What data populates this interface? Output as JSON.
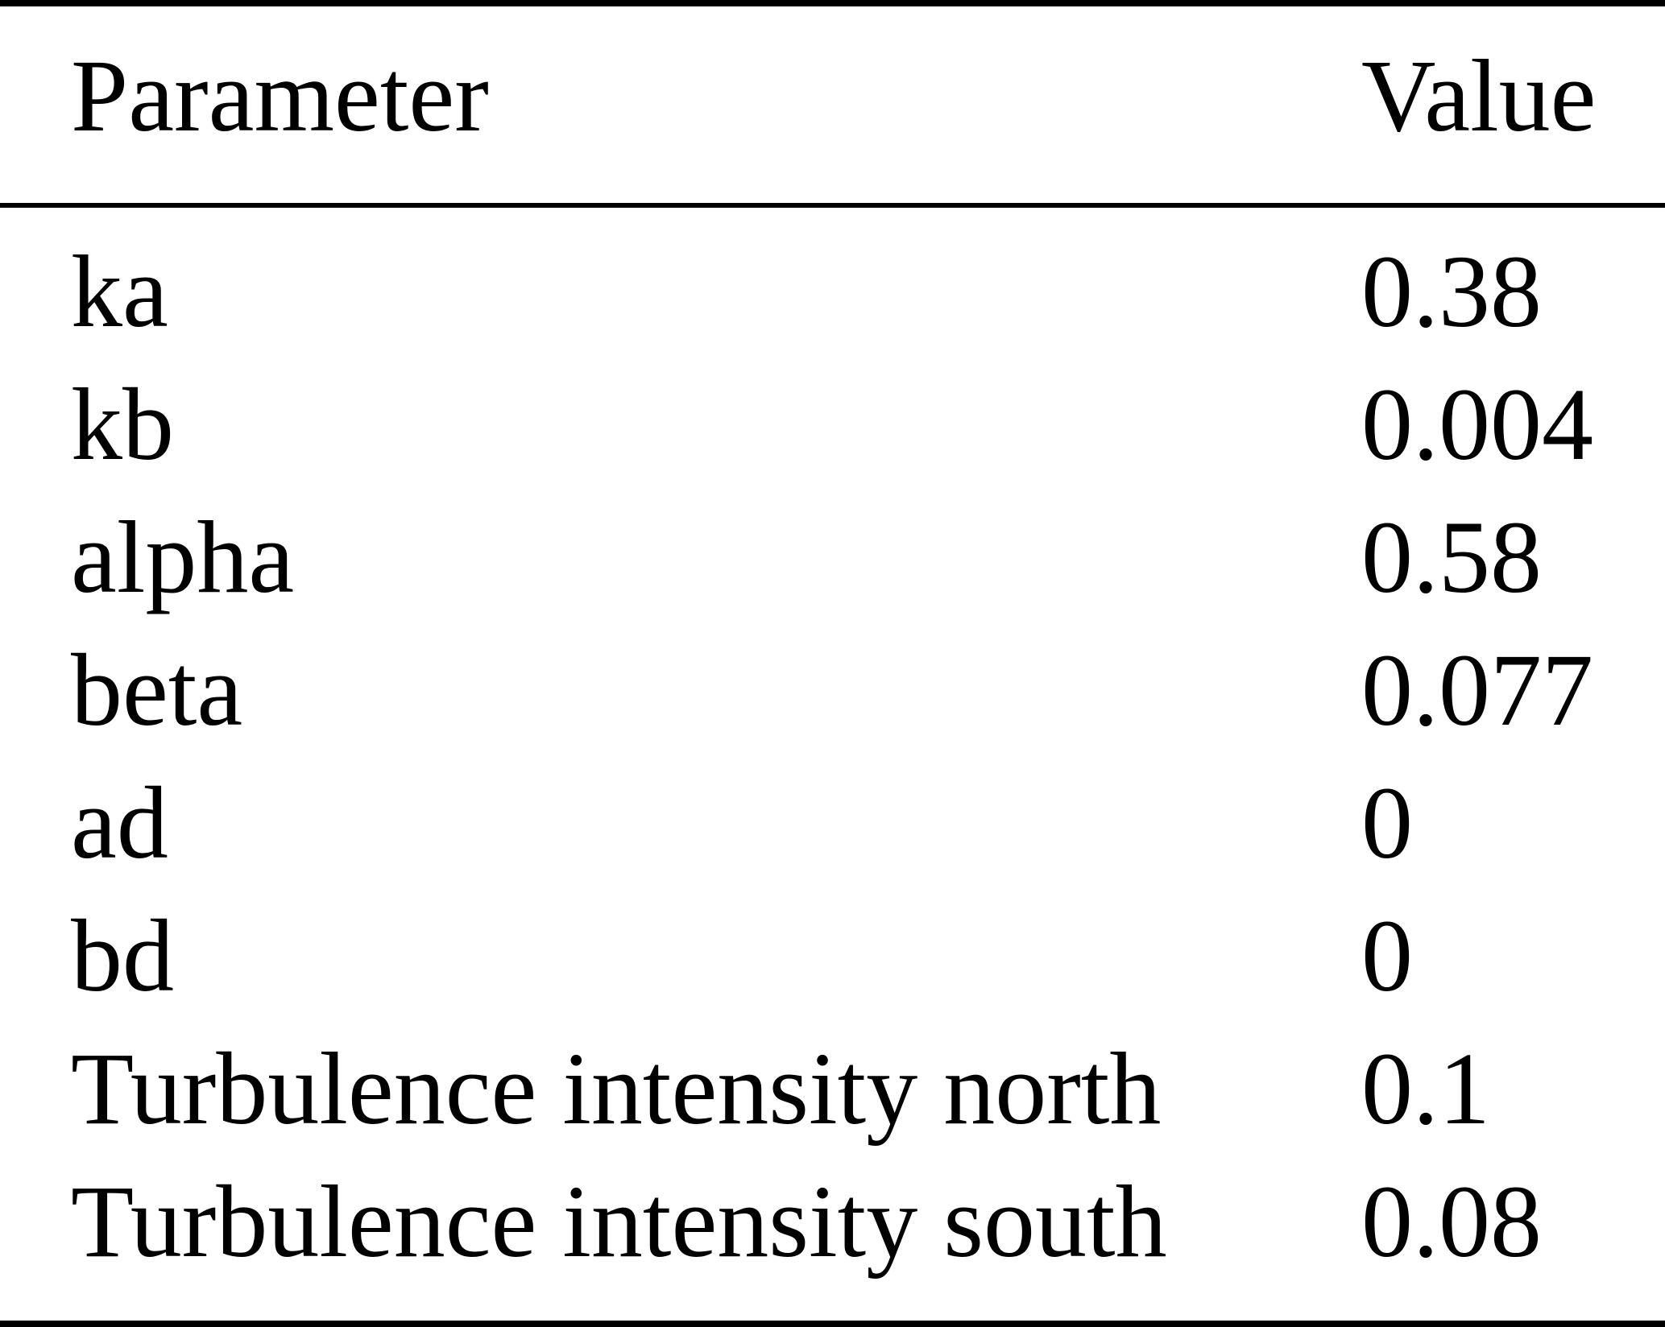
{
  "table": {
    "columns": [
      "Parameter",
      "Value"
    ],
    "rows": [
      {
        "parameter": "ka",
        "value": "0.38"
      },
      {
        "parameter": "kb",
        "value": "0.004"
      },
      {
        "parameter": "alpha",
        "value": "0.58"
      },
      {
        "parameter": "beta",
        "value": "0.077"
      },
      {
        "parameter": "ad",
        "value": "0"
      },
      {
        "parameter": "bd",
        "value": "0"
      },
      {
        "parameter": "Turbulence intensity north",
        "value": "0.1"
      },
      {
        "parameter": "Turbulence intensity south",
        "value": "0.08"
      }
    ]
  },
  "colors": {
    "background": "#ffffff",
    "text": "#000000",
    "rule": "#000000"
  }
}
